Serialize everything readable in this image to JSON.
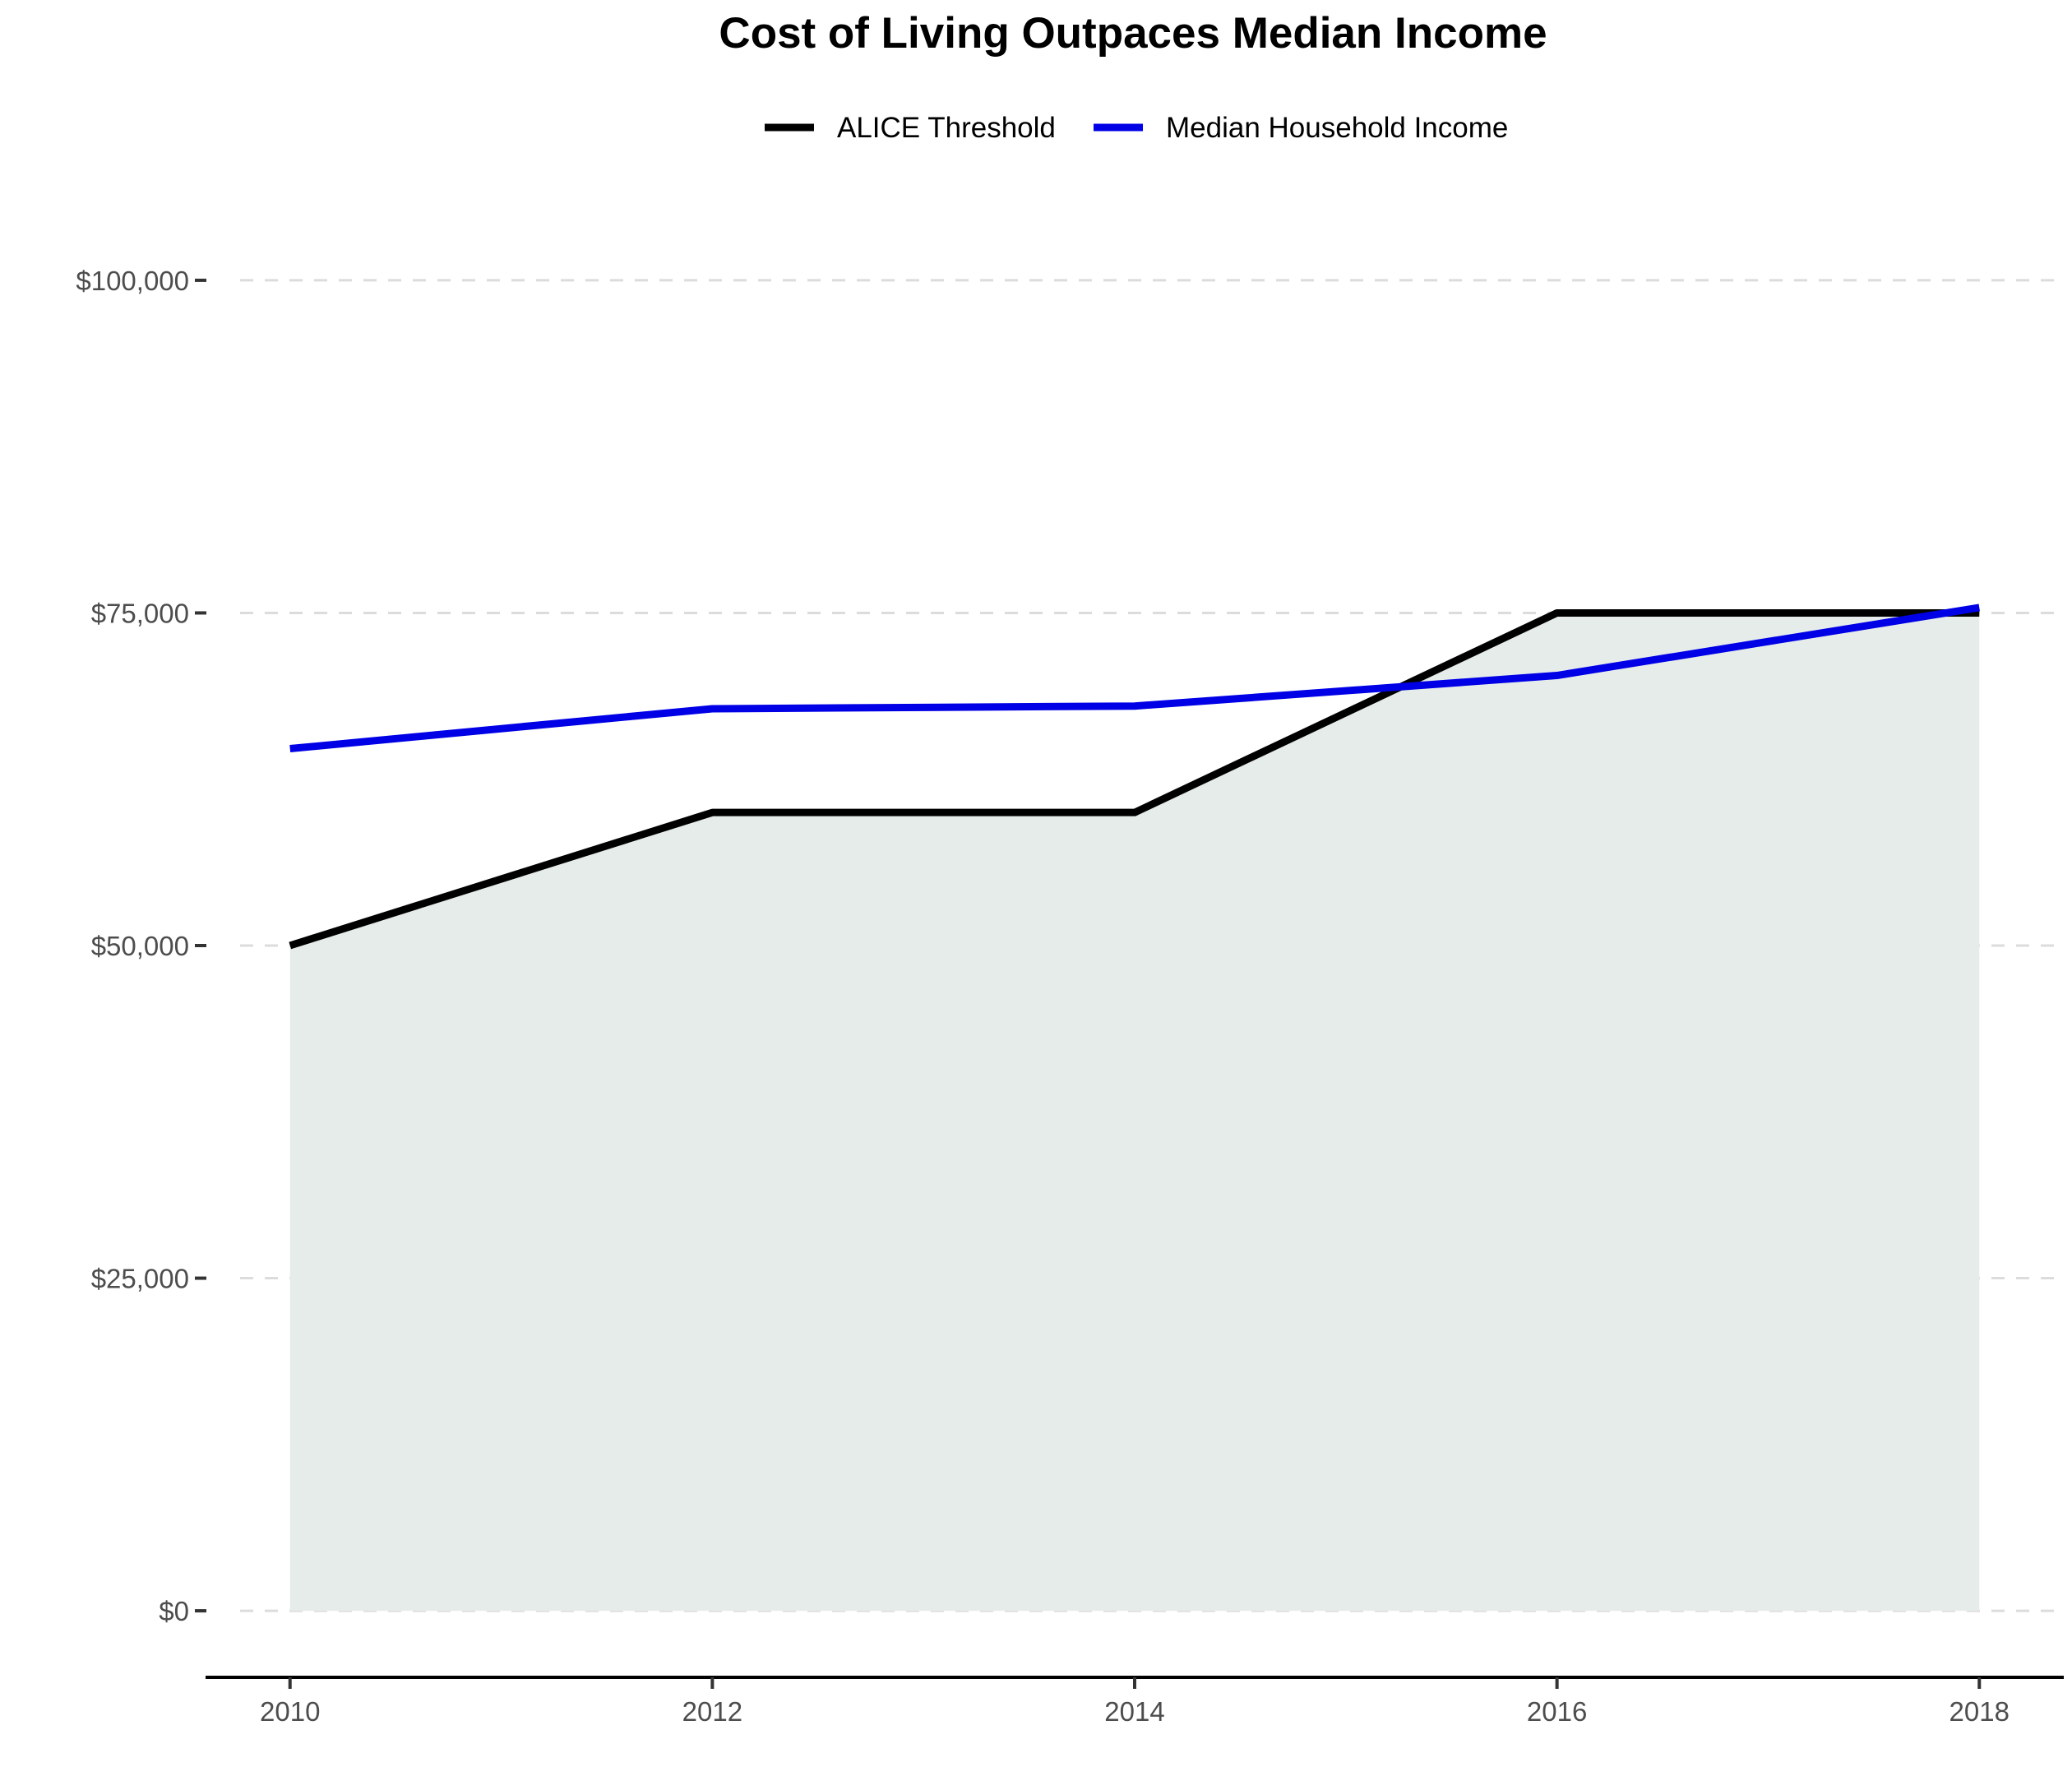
{
  "chart_data": {
    "type": "area",
    "title": "Cost of Living Outpaces Median Income",
    "xlabel": "",
    "ylabel": "",
    "x": [
      2010,
      2012,
      2014,
      2016,
      2018
    ],
    "x_tick_labels": [
      "2010",
      "2012",
      "2014",
      "2016",
      "2018"
    ],
    "y_ticks": [
      0,
      25000,
      50000,
      75000,
      100000
    ],
    "y_tick_labels": [
      "$0",
      "$25,000",
      "$50,000",
      "$75,000",
      "$100,000"
    ],
    "xlim": [
      2009.6,
      2018.4
    ],
    "ylim": [
      -5000,
      105000
    ],
    "grid": "horizontal-dashed",
    "legend_position": "top-center",
    "series": [
      {
        "name": "ALICE Threshold",
        "values": [
          50000,
          60000,
          60000,
          75000,
          75000
        ],
        "color": "#000000",
        "fill": "#e6ecea"
      },
      {
        "name": "Median Household Income",
        "values": [
          64800,
          67800,
          68000,
          70300,
          75400
        ],
        "color": "#0000e6"
      }
    ]
  }
}
